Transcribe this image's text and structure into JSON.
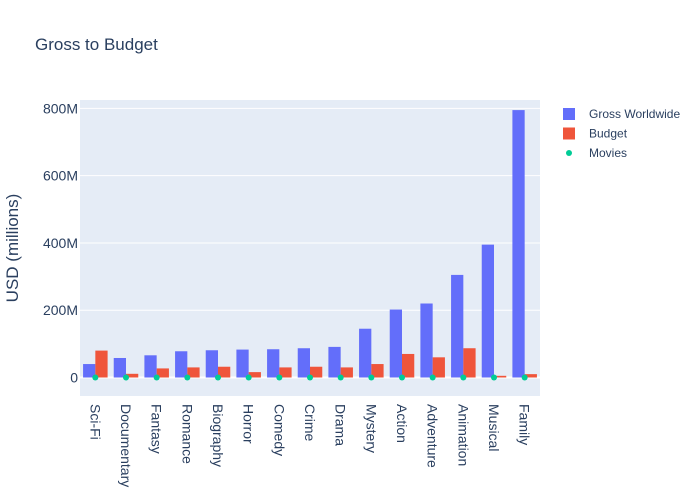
{
  "chart_data": {
    "type": "bar",
    "title": "Gross to Budget",
    "xlabel": "",
    "ylabel": "USD (millions)",
    "ylim": [
      -55,
      825
    ],
    "yticks": [
      0,
      200,
      400,
      600,
      800
    ],
    "ytick_labels": [
      "0",
      "200M",
      "400M",
      "600M",
      "800M"
    ],
    "grid": true,
    "legend_position": "top-right",
    "categories": [
      "Sci-Fi",
      "Documentary",
      "Fantasy",
      "Romance",
      "Biography",
      "Horror",
      "Comedy",
      "Crime",
      "Drama",
      "Mystery",
      "Action",
      "Adventure",
      "Animation",
      "Musical",
      "Family"
    ],
    "series": [
      {
        "name": "Gross Worldwide",
        "type": "bar",
        "color": "#636efa",
        "values": [
          40,
          58,
          66,
          78,
          81,
          83,
          84,
          87,
          91,
          145,
          202,
          220,
          305,
          395,
          795
        ]
      },
      {
        "name": "Budget",
        "type": "bar",
        "color": "#ef553b",
        "values": [
          80,
          11,
          27,
          30,
          32,
          16,
          30,
          32,
          30,
          40,
          70,
          60,
          87,
          5,
          10
        ]
      },
      {
        "name": "Movies",
        "type": "scatter",
        "color": "#00cc96",
        "values": [
          0,
          0,
          0,
          0,
          0,
          0,
          0,
          0,
          0,
          0,
          0,
          0,
          0,
          0,
          0
        ]
      }
    ]
  }
}
